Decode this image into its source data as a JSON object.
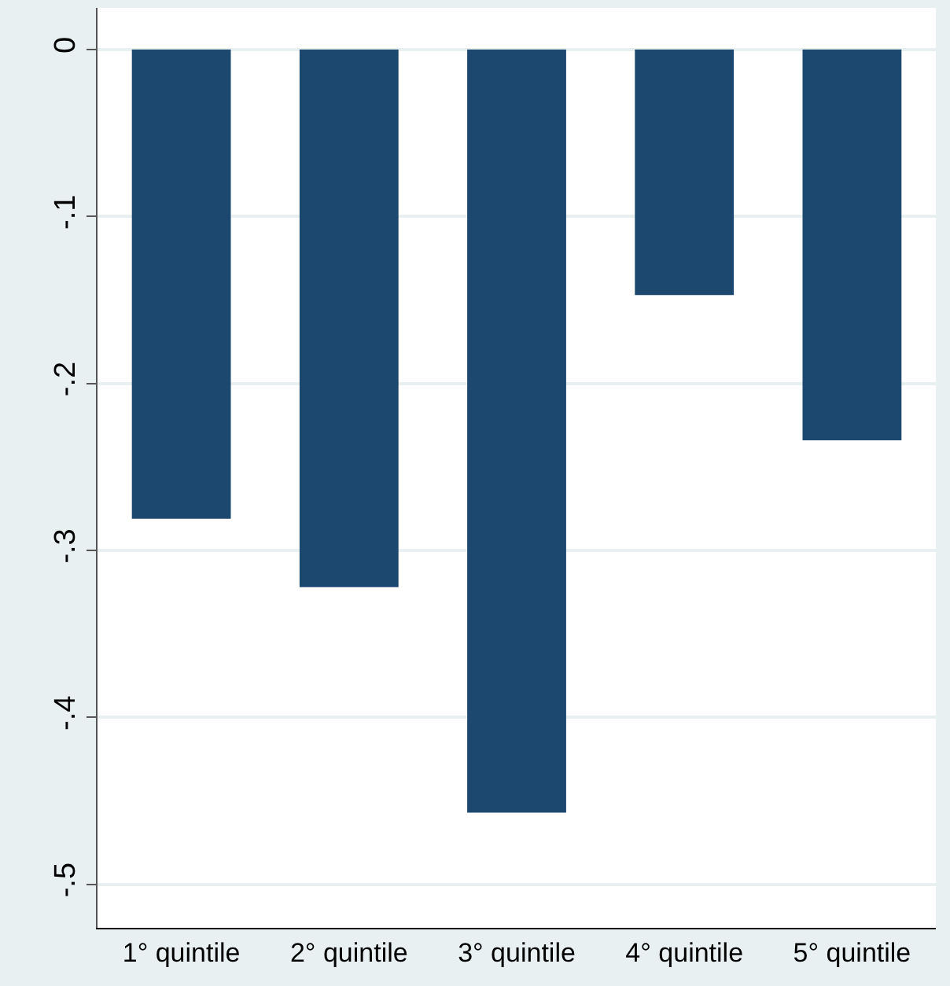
{
  "chart_data": {
    "type": "bar",
    "categories": [
      "1° quintile",
      "2° quintile",
      "3° quintile",
      "4° quintile",
      "5° quintile"
    ],
    "values": [
      -0.281,
      -0.322,
      -0.457,
      -0.147,
      -0.234
    ],
    "color": "#1c4870",
    "ylim": [
      -0.526,
      0.025
    ],
    "yticks": [
      {
        "value": 0,
        "label": "0"
      },
      {
        "value": -0.1,
        "label": "-.1"
      },
      {
        "value": -0.2,
        "label": "-.2"
      },
      {
        "value": -0.3,
        "label": "-.3"
      },
      {
        "value": -0.4,
        "label": "-.4"
      },
      {
        "value": -0.5,
        "label": "-.5"
      }
    ],
    "grid": "y"
  }
}
